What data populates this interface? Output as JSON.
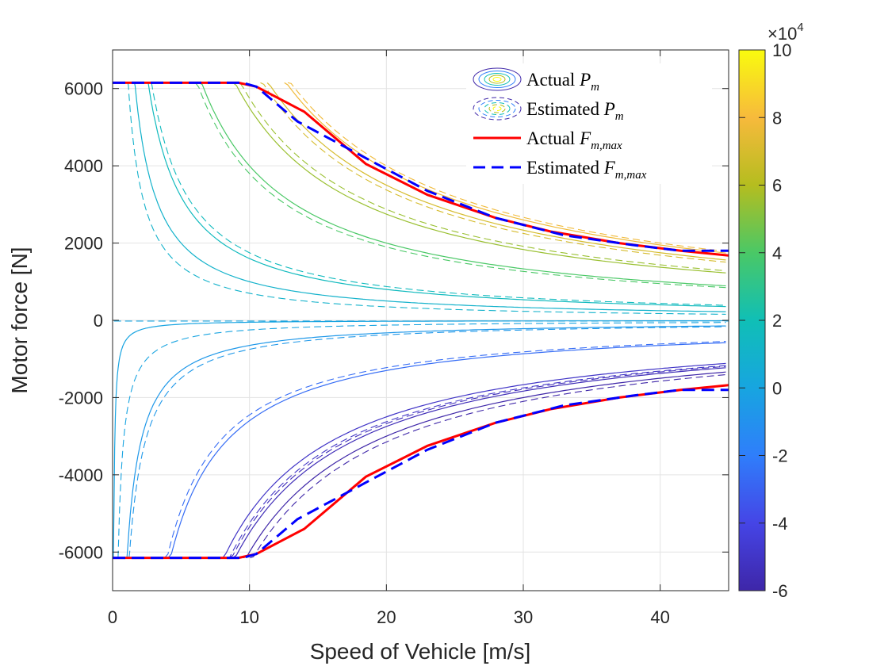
{
  "chart_data": {
    "type": "line",
    "xlabel": "Speed of Vehicle [m/s]",
    "ylabel": "Motor force [N]",
    "xlim": [
      0,
      45
    ],
    "ylim": [
      -7000,
      7000
    ],
    "xticks": [
      0,
      10,
      20,
      30,
      40
    ],
    "yticks": [
      -6000,
      -4000,
      -2000,
      0,
      2000,
      4000,
      6000
    ],
    "xtick_labels": [
      "0",
      "10",
      "20",
      "30",
      "40"
    ],
    "ytick_labels": [
      "-6000",
      "-4000",
      "-2000",
      "0",
      "2000",
      "4000",
      "6000"
    ],
    "grid": true,
    "force_limit_N": 6150,
    "colorbar": {
      "colormap": "parula",
      "min": -60000,
      "max": 100000,
      "tick_values": [
        -6,
        -4,
        -2,
        0,
        2,
        4,
        6,
        8,
        10
      ],
      "tick_labels": [
        "-6",
        "-4",
        "-2",
        "0",
        "2",
        "4",
        "6",
        "8",
        "10"
      ],
      "multiplier_base": "×10",
      "multiplier_exp": "4"
    },
    "contour_power_levels_W": [
      -60000,
      -55000,
      -50000,
      -26000,
      -6500,
      -500,
      10000,
      16000,
      40000,
      55000,
      70000,
      78000
    ],
    "estimated_offsets_W": [
      -3000,
      1500,
      -2500,
      1500,
      -1000,
      -2000,
      -3000,
      1500,
      -2000,
      2500,
      -2500,
      2000
    ],
    "actual_fmax": {
      "name": "Actual F_m,max",
      "color": "#ff0000",
      "x": [
        0,
        9.2,
        10.5,
        14,
        18.5,
        23,
        28,
        32,
        37,
        41.5,
        45
      ],
      "y": [
        6150,
        6150,
        6050,
        5400,
        4050,
        3250,
        2650,
        2300,
        2000,
        1800,
        1680
      ]
    },
    "estimated_fmax": {
      "name": "Estimated F_m,max",
      "color": "#0000ff",
      "x": [
        0,
        9.5,
        10.5,
        13.5,
        18.5,
        23,
        28,
        33,
        38,
        41.5,
        45
      ],
      "y": [
        6150,
        6150,
        6050,
        5150,
        4200,
        3350,
        2650,
        2200,
        1950,
        1800,
        1800
      ]
    },
    "legend": {
      "location": "top-right",
      "entries": [
        {
          "text": "Actual ",
          "sym": "P",
          "sub": "m",
          "style": "contour",
          "dashed": false
        },
        {
          "text": "Estimated ",
          "sym": "P",
          "sub": "m",
          "style": "contour",
          "dashed": true
        },
        {
          "text": "Actual ",
          "sym": "F",
          "sub": "m,max",
          "style": "line",
          "color": "#ff0000",
          "dashed": false
        },
        {
          "text": "Estimated ",
          "sym": "F",
          "sub": "m,max",
          "style": "line",
          "color": "#0000ff",
          "dashed": true
        }
      ]
    }
  }
}
